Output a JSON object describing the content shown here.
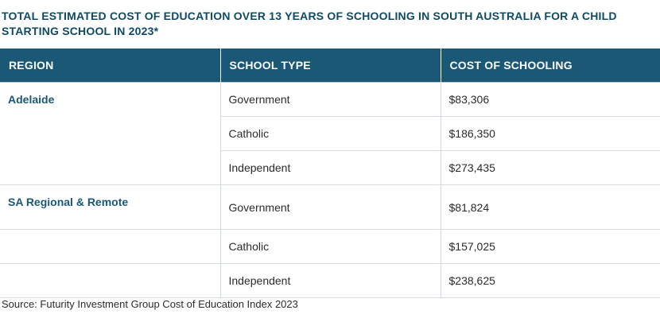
{
  "title": "TOTAL ESTIMATED COST OF EDUCATION OVER 13 YEARS OF SCHOOLING IN SOUTH AUSTRALIA FOR A CHILD STARTING SCHOOL IN 2023*",
  "table": {
    "headers": [
      "REGION",
      "SCHOOL TYPE",
      "COST OF SCHOOLING"
    ],
    "groups": [
      {
        "region": "Adelaide",
        "rows": [
          {
            "school_type": "Government",
            "cost": "$83,306"
          },
          {
            "school_type": "Catholic",
            "cost": "$186,350"
          },
          {
            "school_type": "Independent",
            "cost": "$273,435"
          }
        ]
      },
      {
        "region": "SA Regional & Remote",
        "rows": [
          {
            "school_type": "Government",
            "cost": "$81,824"
          },
          {
            "school_type": "Catholic",
            "cost": "$157,025"
          },
          {
            "school_type": "Independent",
            "cost": "$238,625"
          }
        ]
      }
    ]
  },
  "source": "Source: Futurity Investment Group Cost of Education Index 2023"
}
